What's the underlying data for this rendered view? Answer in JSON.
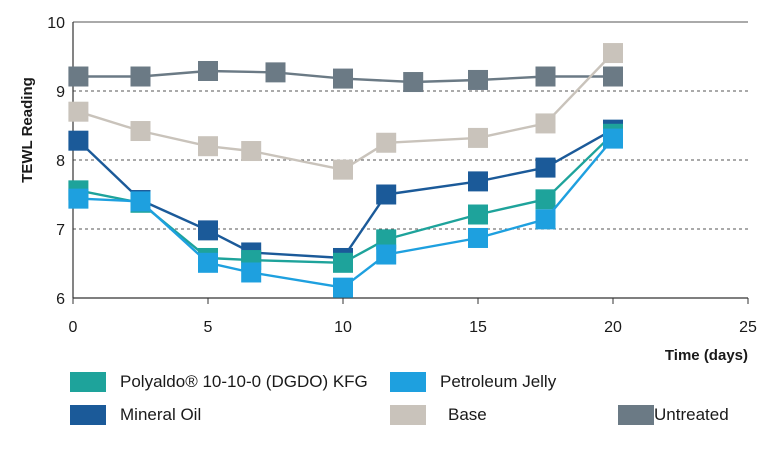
{
  "chart_data": {
    "type": "line",
    "xlabel": "Time (days)",
    "ylabel": "TEWL Reading",
    "xlim": [
      0,
      25
    ],
    "ylim": [
      6,
      10
    ],
    "xticks": [
      "0",
      "5",
      "10",
      "15",
      "20",
      "25"
    ],
    "yticks": [
      "6",
      "7",
      "8",
      "9",
      "10"
    ],
    "grid": "horizontal dashed",
    "legend_position": "bottom",
    "series": [
      {
        "name": "Untreated",
        "color": "#6b7a85",
        "x": [
          0.2,
          2.5,
          5,
          7.5,
          10,
          12.6,
          15,
          17.5,
          20
        ],
        "y": [
          9.21,
          9.21,
          9.29,
          9.27,
          9.18,
          9.13,
          9.16,
          9.21,
          9.21
        ]
      },
      {
        "name": "Base",
        "color": "#c9c3bb",
        "x": [
          0.2,
          2.5,
          5,
          6.6,
          10,
          11.6,
          15,
          17.5,
          20
        ],
        "y": [
          8.7,
          8.42,
          8.2,
          8.13,
          7.86,
          8.25,
          8.32,
          8.53,
          9.55
        ]
      },
      {
        "name": "Mineral Oil",
        "color": "#1b5a99",
        "x": [
          0.2,
          2.5,
          5,
          6.6,
          10,
          11.6,
          15,
          17.5,
          20
        ],
        "y": [
          8.28,
          7.42,
          6.98,
          6.66,
          6.58,
          7.5,
          7.69,
          7.89,
          8.44
        ]
      },
      {
        "name": "Polyaldo® 10-10-0 (DGDO) KFG",
        "color": "#1ea39b",
        "x": [
          0.2,
          2.5,
          5,
          6.6,
          10,
          11.6,
          15,
          17.5,
          20
        ],
        "y": [
          7.56,
          7.38,
          6.58,
          6.55,
          6.51,
          6.85,
          7.21,
          7.43,
          8.38
        ]
      },
      {
        "name": "Petroleum Jelly",
        "color": "#1ea0df",
        "x": [
          0.2,
          2.5,
          5,
          6.6,
          10,
          11.6,
          15,
          17.5,
          20
        ],
        "y": [
          7.44,
          7.4,
          6.51,
          6.37,
          6.15,
          6.63,
          6.87,
          7.14,
          8.31
        ]
      }
    ]
  },
  "legend": {
    "items": [
      {
        "label": "Polyaldo® 10-10-0 (DGDO) KFG",
        "color": "#1ea39b"
      },
      {
        "label": "Petroleum Jelly",
        "color": "#1ea0df"
      },
      {
        "label": "Mineral Oil",
        "color": "#1b5a99"
      },
      {
        "label": "Base",
        "color": "#c9c3bb"
      },
      {
        "label": "Untreated",
        "color": "#6b7a85"
      }
    ]
  }
}
